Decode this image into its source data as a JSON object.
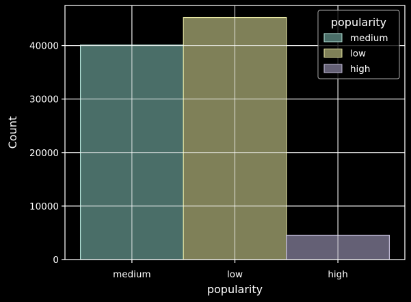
{
  "chart_data": {
    "type": "bar",
    "categories": [
      "medium",
      "low",
      "high"
    ],
    "values": [
      40100,
      45250,
      4550
    ],
    "xlabel": "popularity",
    "ylabel": "Count",
    "ylim": [
      0,
      47500
    ],
    "yticks": [
      0,
      10000,
      20000,
      30000,
      40000
    ],
    "grid": true,
    "legend": {
      "title": "popularity",
      "placement": "top-right",
      "entries": [
        "medium",
        "low",
        "high"
      ]
    },
    "colors": {
      "background": "#000000",
      "axes": "#ffffff",
      "grid": "#ffffff",
      "bar_medium": "#4a6e68",
      "bar_low": "#7f8058",
      "bar_high": "#646075",
      "edge_medium": "#b5e3d8",
      "edge_low": "#eaeaa6",
      "edge_high": "#c6c0dc"
    }
  }
}
